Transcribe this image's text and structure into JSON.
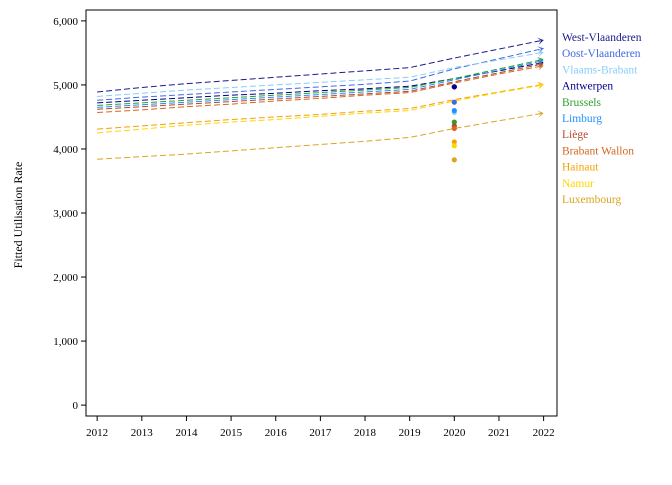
{
  "chart_data": {
    "type": "line",
    "title": "",
    "xlabel": "",
    "ylabel": "Fitted Utilisation Rate",
    "x": [
      2012,
      2013,
      2014,
      2015,
      2016,
      2017,
      2018,
      2019,
      2020,
      2021,
      2022
    ],
    "x_tick_labels": [
      "2012",
      "2013",
      "2014",
      "2015",
      "2016",
      "2017",
      "2018",
      "2019",
      "2020",
      "2021",
      "2022"
    ],
    "xlim": [
      2011.75,
      2022.3
    ],
    "ylim": [
      -170,
      6170
    ],
    "y_ticks": [
      0,
      1000,
      2000,
      3000,
      4000,
      5000,
      6000
    ],
    "y_tick_labels": [
      "0",
      "1,000",
      "2,000",
      "3,000",
      "4,000",
      "5,000",
      "6,000"
    ],
    "grid": false,
    "legend_position": "right",
    "line_style": "dashed",
    "series": [
      {
        "name": "West-Vlaanderen",
        "color": "#1a1a8c",
        "values": [
          4890,
          4960,
          5020,
          5070,
          5120,
          5170,
          5220,
          5270,
          5420,
          5560,
          5700
        ],
        "observed_2020": 4970
      },
      {
        "name": "Oost-Vlaanderen",
        "color": "#4169e1",
        "values": [
          4760,
          4810,
          4850,
          4890,
          4930,
          4970,
          5010,
          5060,
          5250,
          5410,
          5570
        ],
        "observed_2020": 4730
      },
      {
        "name": "Vlaams-Brabant",
        "color": "#87cefa",
        "values": [
          4820,
          4870,
          4920,
          4960,
          5000,
          5040,
          5080,
          5120,
          5270,
          5390,
          5510
        ],
        "observed_2020": 4570
      },
      {
        "name": "Antwerpen",
        "color": "#00008b",
        "values": [
          4720,
          4760,
          4800,
          4840,
          4870,
          4910,
          4940,
          4980,
          5100,
          5220,
          5350
        ],
        "observed_2020": 4970
      },
      {
        "name": "Brussels",
        "color": "#2ca02c",
        "values": [
          4680,
          4720,
          4760,
          4800,
          4840,
          4880,
          4920,
          4960,
          5100,
          5250,
          5400
        ],
        "observed_2020": 4420
      },
      {
        "name": "Limburg",
        "color": "#1e90ff",
        "values": [
          4650,
          4690,
          4730,
          4770,
          4810,
          4850,
          4890,
          4930,
          5080,
          5230,
          5380
        ],
        "observed_2020": 4600
      },
      {
        "name": "Liège",
        "color": "#b5472f",
        "values": [
          4620,
          4660,
          4700,
          4740,
          4780,
          4820,
          4860,
          4900,
          5050,
          5190,
          5330
        ],
        "observed_2020": 4360
      },
      {
        "name": "Brabant Wallon",
        "color": "#d2691e",
        "values": [
          4570,
          4610,
          4660,
          4700,
          4750,
          4790,
          4840,
          4880,
          5030,
          5170,
          5300
        ],
        "observed_2020": 4320
      },
      {
        "name": "Hainaut",
        "color": "#f5a000",
        "values": [
          4310,
          4360,
          4410,
          4460,
          4500,
          4540,
          4590,
          4630,
          4770,
          4890,
          5010
        ],
        "observed_2020": 4110
      },
      {
        "name": "Namur",
        "color": "#ffd700",
        "values": [
          4250,
          4310,
          4370,
          4420,
          4460,
          4510,
          4560,
          4600,
          4750,
          4880,
          5000
        ],
        "observed_2020": 4050
      },
      {
        "name": "Luxembourg",
        "color": "#daa520",
        "values": [
          3840,
          3880,
          3920,
          3970,
          4020,
          4070,
          4120,
          4180,
          4320,
          4440,
          4560
        ],
        "observed_2020": 3830
      }
    ]
  }
}
